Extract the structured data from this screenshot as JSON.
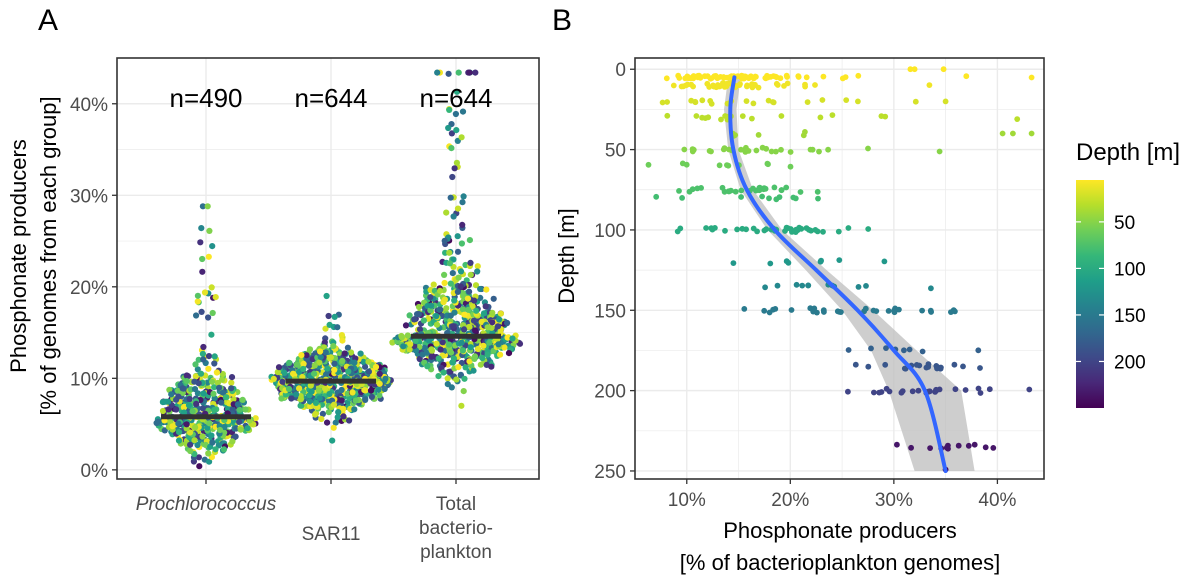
{
  "chart_data": [
    {
      "panel_label": "A",
      "type": "scatter",
      "subtype": "beeswarm",
      "categories": [
        "Prochlorococcus",
        "SAR11",
        "Total bacterio- plankton"
      ],
      "category_label_lines": [
        [
          "Prochlorococcus"
        ],
        [
          "SAR11"
        ],
        [
          "Total",
          "bacterio-",
          "plankton"
        ]
      ],
      "n_labels": [
        "n=490",
        "n=644",
        "n=644"
      ],
      "medians": [
        5.8,
        9.7,
        14.6
      ],
      "max_values": [
        28.8,
        19.0,
        43.4
      ],
      "min_values": [
        0.4,
        3.2,
        7.0
      ],
      "ylabel_lines": [
        "Phosphonate producers",
        "[% of genomes from each group]"
      ],
      "yticks": [
        "0%",
        "10%",
        "20%",
        "30%",
        "40%"
      ],
      "ytick_values": [
        0,
        10,
        20,
        30,
        40
      ],
      "ylim": [
        -1,
        45
      ],
      "grid": true,
      "color_scale": "viridis (by depth)"
    },
    {
      "panel_label": "B",
      "type": "scatter",
      "xlabel_lines": [
        "Phosphonate producers",
        "[% of bacterioplankton genomes]"
      ],
      "ylabel": "Depth [m]",
      "xticks": [
        "10%",
        "20%",
        "30%",
        "40%"
      ],
      "xtick_values": [
        10,
        20,
        30,
        40
      ],
      "yticks": [
        "0",
        "50",
        "100",
        "150",
        "200",
        "250"
      ],
      "ytick_values": [
        0,
        50,
        100,
        150,
        200,
        250
      ],
      "xlim": [
        5,
        44.5
      ],
      "ylim": [
        -7,
        255
      ],
      "y_reversed": true,
      "grid": true,
      "depth_levels": [
        5,
        10,
        20,
        30,
        40,
        50,
        60,
        75,
        80,
        100,
        120,
        135,
        150,
        175,
        185,
        200,
        235,
        250
      ],
      "smooth_fit": {
        "color": "#3366ff",
        "x": [
          14.6,
          14.2,
          14.5,
          15.8,
          18.5,
          22.5,
          26.5,
          30.0,
          33.0,
          35.0
        ],
        "y": [
          5,
          25,
          50,
          75,
          100,
          125,
          150,
          175,
          200,
          250
        ],
        "ci_lower": [
          14.0,
          13.6,
          14.0,
          15.2,
          17.8,
          21.5,
          25.0,
          27.8,
          29.5,
          32.0
        ],
        "ci_upper": [
          15.2,
          14.8,
          15.0,
          16.4,
          19.2,
          23.5,
          28.0,
          32.2,
          36.5,
          37.8
        ]
      },
      "legend": {
        "title": "Depth [m]",
        "ticks": [
          "50",
          "100",
          "150",
          "200"
        ],
        "tick_values": [
          50,
          100,
          150,
          200
        ],
        "range": [
          5,
          250
        ],
        "position": "right"
      }
    }
  ],
  "colors": {
    "viridis": [
      "#440154",
      "#482878",
      "#3e4a89",
      "#31688e",
      "#26828e",
      "#1f9e89",
      "#35b779",
      "#6ece58",
      "#b5de2b",
      "#fde725"
    ],
    "median_bar": "#333333",
    "fit_line": "#3366ff",
    "ci_band": "#bdbdbd",
    "grid": "#ebebeb"
  }
}
